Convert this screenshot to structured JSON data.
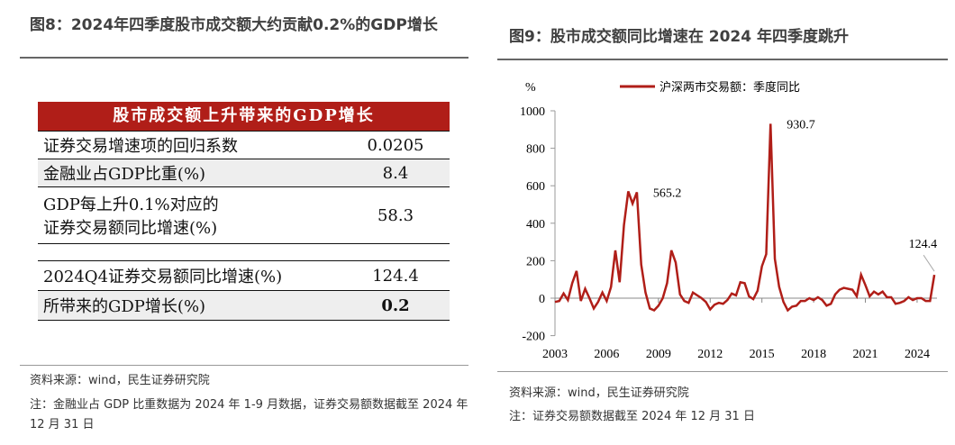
{
  "left": {
    "title": "图8：2024年四季度股市成交额大约贡献0.2%的GDP增长",
    "table": {
      "header": "股市成交额上升带来的GDP增长",
      "rows": [
        {
          "label": "证券交易增速项的回归系数",
          "value": "0.0205"
        },
        {
          "label": "金融业占GDP比重(%)",
          "value": "8.4"
        },
        {
          "label": "GDP每上升0.1%对应的",
          "label2": "证券交易额同比增速(%)",
          "value": "58.3"
        },
        {
          "label": "2024Q4证券交易额同比增速(%)",
          "value": "124.4"
        },
        {
          "label": "所带来的GDP增长(%)",
          "value": "0.2"
        }
      ]
    },
    "source": "资料来源：wind，民生证券研究院",
    "note": "注：金融业占 GDP 比重数据为 2024 年 1-9 月数据，证券交易额数据截至 2024 年 12 月 31 日"
  },
  "right": {
    "title": "图9：股市成交额同比增速在 2024 年四季度跳升",
    "source": "资料来源：wind，民生证券研究院",
    "note": "注：证券交易额数据截至 2024 年 12 月 31 日"
  },
  "chart_data": {
    "type": "line",
    "ylabel": "%",
    "ylim": [
      -200,
      1000
    ],
    "yticks": [
      -200,
      0,
      200,
      400,
      600,
      800,
      1000
    ],
    "xticks": [
      "2003",
      "2006",
      "2009",
      "2012",
      "2015",
      "2018",
      "2021",
      "2024"
    ],
    "x_start": "2003Q1",
    "frequency": "quarterly",
    "line_color": "#b01e18",
    "series": [
      {
        "name": "沪深两市交易额：季度同比",
        "values": [
          -20,
          -15,
          25,
          -10,
          80,
          145,
          -15,
          50,
          0,
          -55,
          -20,
          30,
          -15,
          60,
          255,
          85,
          390,
          570,
          505,
          565.2,
          180,
          30,
          -55,
          -65,
          -40,
          0,
          80,
          255,
          190,
          20,
          -15,
          -25,
          30,
          15,
          0,
          -20,
          -60,
          -35,
          -25,
          -30,
          -10,
          25,
          15,
          85,
          80,
          10,
          -5,
          40,
          170,
          235,
          930.7,
          210,
          60,
          -20,
          -65,
          -45,
          -40,
          -15,
          -15,
          0,
          -10,
          5,
          -10,
          -40,
          -30,
          20,
          45,
          55,
          50,
          45,
          10,
          125,
          70,
          10,
          35,
          20,
          35,
          5,
          5,
          -30,
          -25,
          -15,
          5,
          -10,
          0,
          0,
          -15,
          -15,
          124.4
        ]
      }
    ],
    "annotations": [
      "565.2",
      "930.7",
      "124.4"
    ]
  }
}
